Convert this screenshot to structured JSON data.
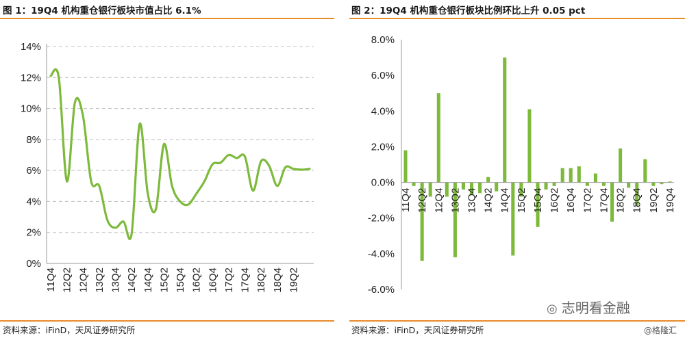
{
  "left": {
    "title": "图 1：19Q4 机构重仓银行板块市值占比 6.1%",
    "source": "资料来源：iFinD，天风证券研究所"
  },
  "right": {
    "title": "图 2：19Q4 机构重仓银行板块比例环比上升 0.05 pct",
    "source": "资料来源：iFinD，天风证券研究所"
  },
  "watermark": {
    "wechat": "志明看金融",
    "gelonghui": "@格隆汇"
  },
  "colors": {
    "series": "#7dba3c",
    "accent": "#e98a2b",
    "grid": "#bfbfbf"
  },
  "chart_data": [
    {
      "type": "line",
      "yticks": [
        "0%",
        "2%",
        "4%",
        "6%",
        "8%",
        "10%",
        "12%",
        "14%"
      ],
      "ylim": [
        0,
        14
      ],
      "xticks": [
        "11Q4",
        "12Q2",
        "12Q4",
        "13Q2",
        "13Q4",
        "14Q2",
        "14Q4",
        "15Q2",
        "15Q4",
        "16Q2",
        "16Q4",
        "17Q2",
        "17Q4",
        "18Q2",
        "18Q4",
        "19Q2"
      ],
      "categories": [
        "11Q4",
        "12Q1",
        "12Q2",
        "12Q3",
        "12Q4",
        "13Q1",
        "13Q2",
        "13Q3",
        "13Q4",
        "14Q1",
        "14Q2",
        "14Q3",
        "14Q4",
        "15Q1",
        "15Q2",
        "15Q3",
        "15Q4",
        "16Q1",
        "16Q2",
        "16Q3",
        "16Q4",
        "17Q1",
        "17Q2",
        "17Q3",
        "17Q4",
        "18Q1",
        "18Q2",
        "18Q3",
        "18Q4",
        "19Q1",
        "19Q2",
        "19Q3",
        "19Q4"
      ],
      "values": [
        12.1,
        12.0,
        5.3,
        10.4,
        9.5,
        5.3,
        5.0,
        2.8,
        2.3,
        2.7,
        1.9,
        9.0,
        4.5,
        3.5,
        7.7,
        5.0,
        4.0,
        3.8,
        4.5,
        5.3,
        6.4,
        6.5,
        7.0,
        6.8,
        6.9,
        4.7,
        6.6,
        6.3,
        5.0,
        6.2,
        6.1,
        6.05,
        6.1
      ]
    },
    {
      "type": "bar",
      "yticks": [
        "-6.0%",
        "-4.0%",
        "-2.0%",
        "0.0%",
        "2.0%",
        "4.0%",
        "6.0%",
        "8.0%"
      ],
      "ylim": [
        -6,
        8
      ],
      "xticks": [
        "11Q4",
        "12Q2",
        "12Q4",
        "13Q2",
        "13Q4",
        "14Q2",
        "14Q4",
        "15Q2",
        "15Q4",
        "16Q2",
        "16Q4",
        "17Q2",
        "17Q4",
        "18Q2",
        "18Q4",
        "19Q2",
        "19Q4"
      ],
      "categories": [
        "11Q4",
        "12Q1",
        "12Q2",
        "12Q3",
        "12Q4",
        "13Q1",
        "13Q2",
        "13Q3",
        "13Q4",
        "14Q1",
        "14Q2",
        "14Q3",
        "14Q4",
        "15Q1",
        "15Q2",
        "15Q3",
        "15Q4",
        "16Q1",
        "16Q2",
        "16Q3",
        "16Q4",
        "17Q1",
        "17Q2",
        "17Q3",
        "17Q4",
        "18Q1",
        "18Q2",
        "18Q3",
        "18Q4",
        "19Q1",
        "19Q2",
        "19Q3",
        "19Q4"
      ],
      "values": [
        1.8,
        -0.2,
        -4.4,
        -0.8,
        5.0,
        -0.8,
        -4.2,
        -0.4,
        -0.7,
        -0.6,
        0.3,
        -0.5,
        7.0,
        -4.1,
        -0.8,
        4.1,
        -2.5,
        -0.4,
        -0.2,
        0.8,
        0.8,
        0.9,
        -0.2,
        0.5,
        -0.2,
        -2.2,
        1.9,
        -0.3,
        -1.3,
        1.3,
        -0.2,
        -0.1,
        0.05
      ]
    }
  ]
}
